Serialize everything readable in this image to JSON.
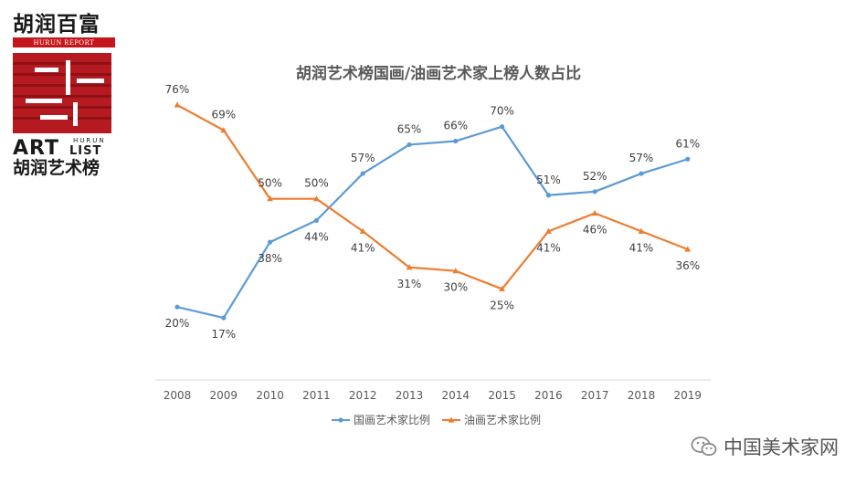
{
  "logo": {
    "brand_cn": "胡润百富",
    "brand_en": "HURUN REPORT",
    "art_text": "ART",
    "list_text": "LIST",
    "hurun_text": "HURUN",
    "list_name_cn": "胡润艺术榜"
  },
  "watermark": {
    "text": "中国美术家网",
    "icon": "wechat-icon"
  },
  "chart_data": {
    "type": "line",
    "title": "胡润艺术榜国画/油画艺术家上榜人数占比",
    "categories": [
      "2008",
      "2009",
      "2010",
      "2011",
      "2012",
      "2013",
      "2014",
      "2015",
      "2016",
      "2017",
      "2018",
      "2019"
    ],
    "series": [
      {
        "name": "国画艺术家比例",
        "color": "#5b9bd5",
        "marker": "circle",
        "values": [
          20,
          17,
          38,
          44,
          57,
          65,
          66,
          70,
          51,
          52,
          57,
          61
        ],
        "labels": [
          "20%",
          "17%",
          "38%",
          "44%",
          "57%",
          "65%",
          "66%",
          "70%",
          "51%",
          "52%",
          "57%",
          "61%"
        ],
        "label_position": [
          "below",
          "below",
          "below",
          "below",
          "above",
          "above",
          "above",
          "above",
          "above",
          "above",
          "above",
          "above"
        ]
      },
      {
        "name": "油画艺术家比例",
        "color": "#ed7d31",
        "marker": "triangle",
        "values": [
          76,
          69,
          50,
          50,
          41,
          31,
          30,
          25,
          41,
          46,
          41,
          36
        ],
        "labels": [
          "76%",
          "69%",
          "50%",
          "50%",
          "41%",
          "31%",
          "30%",
          "25%",
          "41%",
          "46%",
          "41%",
          "36%"
        ],
        "label_position": [
          "above",
          "above",
          "above",
          "above",
          "below",
          "below",
          "below",
          "below",
          "below",
          "below",
          "below",
          "below"
        ]
      }
    ],
    "legend": "bottom",
    "grid": false,
    "y_axis_visible": false
  }
}
